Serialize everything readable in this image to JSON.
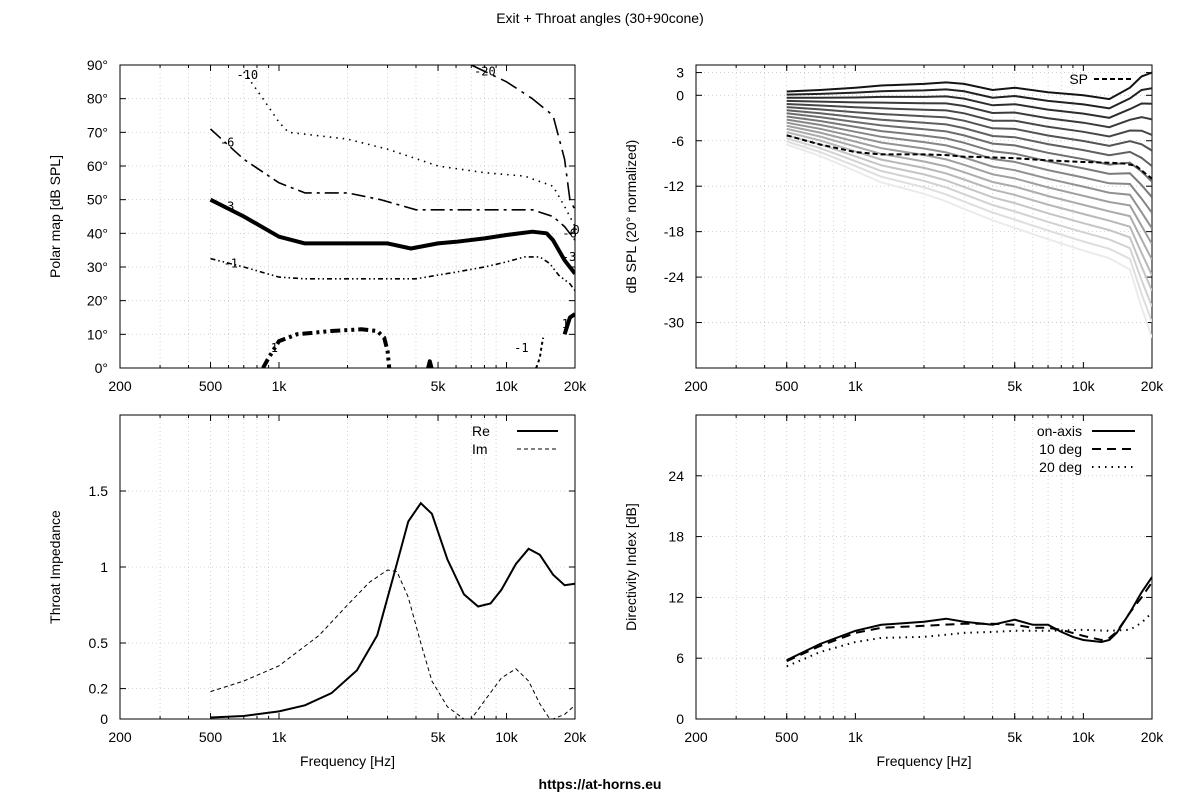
{
  "page": {
    "title": "Exit + Throat angles (30+90cone)",
    "footer": "https://at-horns.eu"
  },
  "chart_data": [
    {
      "id": "polar",
      "type": "line",
      "subtype": "contour",
      "ylabel": "Polar map [dB SPL]",
      "xlabel": "",
      "xscale": "log",
      "xlim": [
        200,
        20000
      ],
      "ylim": [
        0,
        90
      ],
      "xticks": [
        {
          "v": 200,
          "l": "200"
        },
        {
          "v": 500,
          "l": "500"
        },
        {
          "v": 1000,
          "l": "1k"
        },
        {
          "v": 5000,
          "l": "5k"
        },
        {
          "v": 10000,
          "l": "10k"
        },
        {
          "v": 20000,
          "l": "20k"
        }
      ],
      "yticks": [
        {
          "v": 0,
          "l": "0°"
        },
        {
          "v": 10,
          "l": "10°"
        },
        {
          "v": 20,
          "l": "20°"
        },
        {
          "v": 30,
          "l": "30°"
        },
        {
          "v": 40,
          "l": "40°"
        },
        {
          "v": 50,
          "l": "50°"
        },
        {
          "v": 60,
          "l": "60°"
        },
        {
          "v": 70,
          "l": "70°"
        },
        {
          "v": 80,
          "l": "80°"
        },
        {
          "v": 90,
          "l": "90°"
        }
      ],
      "grid": true,
      "series": [
        {
          "label": "-10",
          "dash": "1.5,5",
          "w": 1.6,
          "labelAt": [
            650,
            87
          ],
          "points": [
            [
              700,
              88
            ],
            [
              850,
              80
            ],
            [
              1000,
              73
            ],
            [
              1100,
              70
            ],
            [
              2000,
              68
            ],
            [
              3000,
              65
            ],
            [
              5000,
              60
            ],
            [
              8000,
              58
            ],
            [
              12000,
              57
            ],
            [
              16000,
              54
            ],
            [
              18000,
              48
            ],
            [
              20000,
              42
            ]
          ]
        },
        {
          "label": "-20",
          "dash": "18,6,3,6",
          "w": 1.6,
          "labelAt": [
            7200,
            88
          ],
          "points": [
            [
              7000,
              90
            ],
            [
              10000,
              85
            ],
            [
              13000,
              80
            ],
            [
              16000,
              75
            ],
            [
              18000,
              62
            ],
            [
              19000,
              50
            ],
            [
              20000,
              47
            ]
          ]
        },
        {
          "label": "-6",
          "dash": "14,5,3,5",
          "w": 1.6,
          "labelAt": [
            550,
            67
          ],
          "points": [
            [
              500,
              71
            ],
            [
              700,
              62
            ],
            [
              1000,
              55
            ],
            [
              1300,
              52
            ],
            [
              2000,
              52
            ],
            [
              2800,
              50
            ],
            [
              4000,
              47
            ],
            [
              6000,
              47
            ],
            [
              10000,
              47
            ],
            [
              13000,
              47
            ],
            [
              16000,
              45
            ],
            [
              18000,
              42
            ],
            [
              20000,
              38
            ]
          ]
        },
        {
          "label": "-3",
          "dash": "",
          "w": 4,
          "labelAt": [
            550,
            48
          ],
          "points": [
            [
              500,
              50
            ],
            [
              700,
              45
            ],
            [
              1000,
              39
            ],
            [
              1300,
              37
            ],
            [
              2000,
              37
            ],
            [
              3000,
              37
            ],
            [
              3800,
              35.5
            ],
            [
              5000,
              37
            ],
            [
              6000,
              37.5
            ],
            [
              8000,
              38.5
            ],
            [
              10000,
              39.5
            ],
            [
              13000,
              40.5
            ],
            [
              15000,
              40
            ],
            [
              16000,
              38
            ],
            [
              18000,
              32
            ],
            [
              20000,
              28
            ]
          ]
        },
        {
          "label": "-1",
          "dash": "5,3,1.5,3,1.5,3",
          "w": 1.6,
          "labelAt": [
            570,
            31
          ],
          "points": [
            [
              500,
              32.5
            ],
            [
              700,
              30
            ],
            [
              1000,
              27
            ],
            [
              1300,
              26.5
            ],
            [
              2000,
              26.5
            ],
            [
              3000,
              26.5
            ],
            [
              4000,
              26.5
            ],
            [
              6000,
              28.5
            ],
            [
              8000,
              30
            ],
            [
              10000,
              31.5
            ],
            [
              12000,
              33
            ],
            [
              14000,
              33
            ],
            [
              15500,
              31
            ],
            [
              17000,
              27.5
            ],
            [
              19000,
              25
            ],
            [
              20000,
              23
            ]
          ]
        },
        {
          "label": "1",
          "dash": "10,4,3,4,3,4",
          "w": 4,
          "labelAt": [
            920,
            6
          ],
          "points": [
            [
              850,
              0
            ],
            [
              900,
              3
            ],
            [
              1000,
              8
            ],
            [
              1200,
              10
            ],
            [
              1700,
              11
            ],
            [
              2300,
              11.5
            ],
            [
              2700,
              11
            ],
            [
              2900,
              9
            ],
            [
              3000,
              5
            ],
            [
              3050,
              0
            ]
          ]
        },
        {
          "label": "-1",
          "dash": "3,3",
          "w": 2,
          "labelAt": [
            10800,
            6
          ],
          "points": [
            [
              13500,
              0
            ],
            [
              14000,
              3
            ],
            [
              14300,
              7
            ],
            [
              14500,
              9
            ]
          ]
        },
        {
          "label": "1",
          "dash": "",
          "w": 4,
          "labelAt": [
            17500,
            13
          ],
          "points": [
            [
              18000,
              10
            ],
            [
              19000,
              15
            ],
            [
              20000,
              16
            ]
          ]
        },
        {
          "label": "",
          "dash": "",
          "w": 4,
          "labelAt": null,
          "points": [
            [
              4520,
              0
            ],
            [
              4600,
              2
            ],
            [
              4680,
              0
            ]
          ]
        }
      ],
      "extraLabels": [
        {
          "text": "-3",
          "at": [
            17500,
            33
          ]
        },
        {
          "text": "-6",
          "at": [
            17600,
            40
          ]
        },
        {
          "text": "0",
          "at": [
            19500,
            41
          ]
        }
      ]
    },
    {
      "id": "spl",
      "type": "line",
      "ylabel": "dB SPL (20° normalized)",
      "xlabel": "",
      "xscale": "log",
      "xlim": [
        200,
        20000
      ],
      "ylim": [
        -36,
        4
      ],
      "xticks": [
        {
          "v": 200,
          "l": "200"
        },
        {
          "v": 500,
          "l": "500"
        },
        {
          "v": 1000,
          "l": "1k"
        },
        {
          "v": 5000,
          "l": "5k"
        },
        {
          "v": 10000,
          "l": "10k"
        },
        {
          "v": 20000,
          "l": "20k"
        }
      ],
      "yticks": [
        {
          "v": 3,
          "l": "3"
        },
        {
          "v": 0,
          "l": "0"
        },
        {
          "v": -6,
          "l": "-6"
        },
        {
          "v": -12,
          "l": "-12"
        },
        {
          "v": -18,
          "l": "-18"
        },
        {
          "v": -24,
          "l": "-24"
        },
        {
          "v": -30,
          "l": "-30"
        }
      ],
      "grid": true,
      "legend": [
        {
          "name": "SP",
          "style": "dashed"
        }
      ],
      "family": {
        "count": 18,
        "x": [
          500,
          700,
          1000,
          1300,
          2000,
          2500,
          3000,
          4000,
          5000,
          7000,
          10000,
          13000,
          16000,
          18000,
          20000
        ],
        "first": [
          0.5,
          0.7,
          1,
          1.3,
          1.5,
          1.7,
          1.5,
          0.7,
          1,
          0.4,
          0,
          -0.5,
          1,
          2.5,
          3
        ],
        "last": [
          -6.5,
          -8,
          -10,
          -11.5,
          -13,
          -14,
          -15,
          -16.5,
          -17.5,
          -19,
          -20.5,
          -21.5,
          -23,
          -28,
          -32
        ]
      },
      "series": [
        {
          "name": "SP",
          "x": [
            500,
            700,
            1000,
            1300,
            2000,
            2500,
            3000,
            4000,
            5000,
            7000,
            10000,
            13000,
            15000,
            17000,
            19000,
            20000
          ],
          "y": [
            -5.3,
            -6.5,
            -7.5,
            -7.8,
            -7.8,
            -7.9,
            -8.1,
            -8.2,
            -8.3,
            -8.6,
            -8.8,
            -8.9,
            -9,
            -9.3,
            -10.5,
            -11
          ]
        }
      ]
    },
    {
      "id": "impedance",
      "type": "line",
      "ylabel": "Throat Impedance",
      "xlabel": "Frequency [Hz]",
      "xscale": "log",
      "xlim": [
        200,
        20000
      ],
      "ylim": [
        0,
        2
      ],
      "xticks": [
        {
          "v": 200,
          "l": "200"
        },
        {
          "v": 500,
          "l": "500"
        },
        {
          "v": 1000,
          "l": "1k"
        },
        {
          "v": 5000,
          "l": "5k"
        },
        {
          "v": 10000,
          "l": "10k"
        },
        {
          "v": 20000,
          "l": "20k"
        }
      ],
      "yticks": [
        {
          "v": 0,
          "l": "0"
        },
        {
          "v": 0.2,
          "l": "0.2"
        },
        {
          "v": 0.5,
          "l": "0.5"
        },
        {
          "v": 1,
          "l": "1"
        },
        {
          "v": 1.5,
          "l": "1.5"
        }
      ],
      "grid": true,
      "legend": [
        {
          "name": "Re",
          "style": "solid"
        },
        {
          "name": "Im",
          "style": "dashed"
        }
      ],
      "series": [
        {
          "name": "Re",
          "x": [
            500,
            700,
            1000,
            1300,
            1700,
            2200,
            2700,
            3200,
            3700,
            4200,
            4700,
            5500,
            6500,
            7500,
            8500,
            9500,
            11000,
            12500,
            14000,
            16000,
            18000,
            20000
          ],
          "y": [
            0.01,
            0.02,
            0.05,
            0.09,
            0.17,
            0.32,
            0.55,
            0.95,
            1.3,
            1.42,
            1.35,
            1.05,
            0.82,
            0.74,
            0.76,
            0.85,
            1.02,
            1.12,
            1.08,
            0.95,
            0.88,
            0.89
          ]
        },
        {
          "name": "Im",
          "x": [
            500,
            700,
            1000,
            1500,
            2000,
            2500,
            3000,
            3300,
            3700,
            4200,
            4700,
            5500,
            6500,
            7000,
            8000,
            9500,
            11000,
            12500,
            14000,
            15500,
            16000,
            18000,
            20000
          ],
          "y": [
            0.18,
            0.25,
            0.35,
            0.55,
            0.75,
            0.9,
            0.98,
            0.97,
            0.8,
            0.5,
            0.25,
            0.08,
            0,
            0,
            0.12,
            0.27,
            0.33,
            0.25,
            0.1,
            0,
            0,
            0.03,
            0.09
          ]
        }
      ]
    },
    {
      "id": "di",
      "type": "line",
      "ylabel": "Directivity Index [dB]",
      "xlabel": "Frequency [Hz]",
      "xscale": "log",
      "xlim": [
        200,
        20000
      ],
      "ylim": [
        0,
        30
      ],
      "xticks": [
        {
          "v": 200,
          "l": "200"
        },
        {
          "v": 500,
          "l": "500"
        },
        {
          "v": 1000,
          "l": "1k"
        },
        {
          "v": 5000,
          "l": "5k"
        },
        {
          "v": 10000,
          "l": "10k"
        },
        {
          "v": 20000,
          "l": "20k"
        }
      ],
      "yticks": [
        {
          "v": 0,
          "l": "0"
        },
        {
          "v": 6,
          "l": "6"
        },
        {
          "v": 12,
          "l": "12"
        },
        {
          "v": 18,
          "l": "18"
        },
        {
          "v": 24,
          "l": "24"
        }
      ],
      "grid": true,
      "legend": [
        {
          "name": "on-axis",
          "style": "solid"
        },
        {
          "name": "10 deg",
          "style": "dashed"
        },
        {
          "name": "20 deg",
          "style": "dotted"
        }
      ],
      "series": [
        {
          "name": "on-axis",
          "x": [
            500,
            700,
            1000,
            1300,
            2000,
            2500,
            3000,
            4000,
            5000,
            6000,
            7000,
            8000,
            9000,
            10000,
            12000,
            13000,
            14000,
            16000,
            18000,
            20000
          ],
          "y": [
            5.8,
            7.4,
            8.7,
            9.3,
            9.6,
            9.9,
            9.6,
            9.3,
            9.8,
            9.3,
            9.3,
            8.6,
            8.1,
            7.8,
            7.6,
            7.8,
            8.5,
            10.5,
            12.5,
            14
          ]
        },
        {
          "name": "10 deg",
          "x": [
            500,
            700,
            1000,
            1300,
            2000,
            3000,
            4000,
            5000,
            6000,
            7000,
            8000,
            10000,
            12000,
            13000,
            14000,
            16000,
            18000,
            20000
          ],
          "y": [
            5.7,
            7.2,
            8.5,
            9,
            9.2,
            9.4,
            9.4,
            9.3,
            9,
            9,
            8.8,
            8.2,
            7.8,
            8,
            8.6,
            10.5,
            12,
            13.5
          ]
        },
        {
          "name": "20 deg",
          "x": [
            500,
            700,
            1000,
            1300,
            2000,
            3000,
            4000,
            5000,
            7000,
            10000,
            13000,
            16000,
            18000,
            20000
          ],
          "y": [
            5.2,
            6.6,
            7.6,
            8,
            8.1,
            8.5,
            8.6,
            8.7,
            8.7,
            8.8,
            8.7,
            8.8,
            9.5,
            10.5
          ]
        }
      ]
    }
  ]
}
